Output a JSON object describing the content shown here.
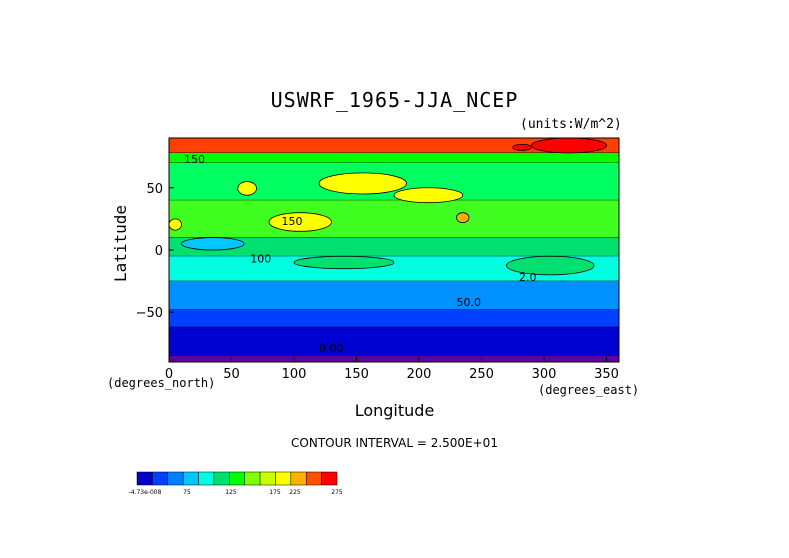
{
  "chart_data": {
    "type": "heatmap",
    "title": "USWRF_1965-JJA_NCEP",
    "units": "(units:W/m^2)",
    "xlabel": "Longitude",
    "ylabel": "Latitude",
    "x_unit": "(degrees_north)",
    "x_unit_right": "(degrees_east)",
    "xlim": [
      0,
      360
    ],
    "ylim": [
      -90,
      90
    ],
    "x_ticks": [
      "0",
      "50",
      "100",
      "150",
      "200",
      "250",
      "300",
      "350"
    ],
    "y_ticks": [
      "50",
      "0",
      "−50"
    ],
    "contour_interval_text": "CONTOUR INTERVAL = 2.500E+01",
    "contour_labels": [
      "150",
      "150",
      "100",
      "50.0",
      "0.00",
      "2.0"
    ],
    "colorbar": {
      "colors": [
        "#0000c8",
        "#0040ff",
        "#0080ff",
        "#00c8ff",
        "#00ffe0",
        "#00e070",
        "#00ff00",
        "#80ff00",
        "#c8ff00",
        "#ffff00",
        "#ffb000",
        "#ff5000",
        "#ff0000"
      ],
      "labels": [
        "-4.73e-008",
        "75",
        "125",
        "175",
        "225",
        "275"
      ]
    },
    "bands": [
      {
        "lat_top": 90,
        "lat_bot": 78,
        "value": 275,
        "color": "#ff4000"
      },
      {
        "lat_top": 78,
        "lat_bot": 70,
        "value": 180,
        "color": "#00ff00"
      },
      {
        "lat_top": 70,
        "lat_bot": 40,
        "value": 160,
        "color": "#00ff60"
      },
      {
        "lat_top": 40,
        "lat_bot": 10,
        "value": 150,
        "color": "#40ff20"
      },
      {
        "lat_top": 10,
        "lat_bot": -5,
        "value": 150,
        "color": "#00e070"
      },
      {
        "lat_top": -5,
        "lat_bot": -25,
        "value": 100,
        "color": "#00ffe0"
      },
      {
        "lat_top": -25,
        "lat_bot": -48,
        "value": 75,
        "color": "#0090ff"
      },
      {
        "lat_top": -48,
        "lat_bot": -62,
        "value": 50,
        "color": "#0040ff"
      },
      {
        "lat_top": -62,
        "lat_bot": -85,
        "value": 25,
        "color": "#0000d0"
      },
      {
        "lat_top": -85,
        "lat_bot": -90,
        "value": 0,
        "color": "#6000a0"
      }
    ],
    "patches": [
      {
        "lon": [
          55,
          70
        ],
        "lat": [
          55,
          44
        ],
        "color": "#ffff00"
      },
      {
        "lon": [
          120,
          190
        ],
        "lat": [
          62,
          45
        ],
        "color": "#ffff00"
      },
      {
        "lon": [
          180,
          235
        ],
        "lat": [
          50,
          38
        ],
        "color": "#ffff00"
      },
      {
        "lon": [
          80,
          130
        ],
        "lat": [
          30,
          15
        ],
        "color": "#ffff00"
      },
      {
        "lon": [
          230,
          240
        ],
        "lat": [
          30,
          22
        ],
        "color": "#ffb000"
      },
      {
        "lon": [
          0,
          10
        ],
        "lat": [
          25,
          16
        ],
        "color": "#ffff00"
      },
      {
        "lon": [
          10,
          60
        ],
        "lat": [
          10,
          0
        ],
        "color": "#00c8ff"
      },
      {
        "lon": [
          100,
          180
        ],
        "lat": [
          -5,
          -15
        ],
        "color": "#00e070"
      },
      {
        "lon": [
          270,
          340
        ],
        "lat": [
          -5,
          -20
        ],
        "color": "#00e070"
      },
      {
        "lon": [
          290,
          350
        ],
        "lat": [
          90,
          78
        ],
        "color": "#ff0000"
      },
      {
        "lon": [
          275,
          290
        ],
        "lat": [
          85,
          80
        ],
        "color": "#ff0000"
      }
    ]
  }
}
